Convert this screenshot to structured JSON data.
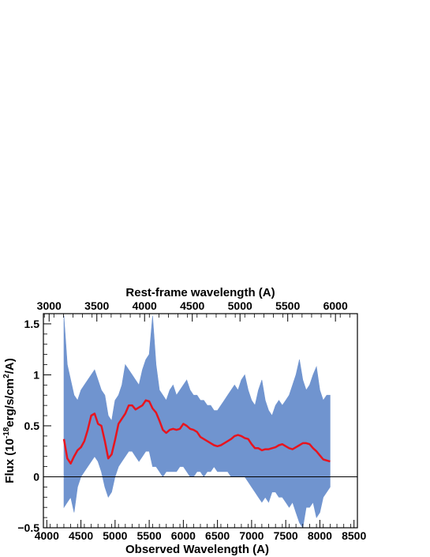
{
  "chart_data": {
    "type": "line",
    "xlabel": "Observed Wavelength (A)",
    "x2label": "Rest-frame wavelength (A)",
    "ylabel_main": "Flux (10",
    "ylabel_exp": "-18",
    "ylabel_mid": "erg/s/cm",
    "ylabel_exp2": "2",
    "ylabel_end": "/A)",
    "xlim": [
      3950,
      8550
    ],
    "ylim": [
      -0.5,
      1.6
    ],
    "x2lim": [
      2940,
      6230
    ],
    "xticks": [
      4000,
      4500,
      5000,
      5500,
      6000,
      6500,
      7000,
      7500,
      8000,
      8500
    ],
    "x2ticks": [
      3000,
      3500,
      4000,
      4500,
      5000,
      5500,
      6000
    ],
    "yticks": [
      -0.5,
      0,
      0.5,
      1,
      1.5
    ],
    "ytick_labels": [
      "−0.5",
      "0",
      "0.5",
      "1",
      "1.5"
    ],
    "colors": {
      "spectrum": "#7094cf",
      "model": "#e8141e",
      "zero_line": "#000000"
    },
    "series": [
      {
        "style": "filled-band",
        "x": [
          4250,
          4300,
          4350,
          4400,
          4450,
          4500,
          4550,
          4600,
          4650,
          4700,
          4750,
          4800,
          4850,
          4900,
          4950,
          5000,
          5050,
          5100,
          5150,
          5200,
          5250,
          5300,
          5350,
          5400,
          5450,
          5500,
          5550,
          5600,
          5650,
          5700,
          5750,
          5800,
          5850,
          5900,
          5950,
          6000,
          6050,
          6100,
          6150,
          6200,
          6250,
          6300,
          6350,
          6400,
          6450,
          6500,
          6550,
          6600,
          6650,
          6700,
          6750,
          6800,
          6850,
          6900,
          6950,
          7000,
          7050,
          7100,
          7150,
          7200,
          7250,
          7300,
          7350,
          7400,
          7450,
          7500,
          7550,
          7600,
          7650,
          7700,
          7750,
          7800,
          7850,
          7900,
          7950,
          8000,
          8050,
          8100,
          8150
        ],
        "upper": [
          1.58,
          1.1,
          0.95,
          0.8,
          0.75,
          0.85,
          0.9,
          0.95,
          1.0,
          1.05,
          0.95,
          0.85,
          0.8,
          0.6,
          0.55,
          0.75,
          0.8,
          0.9,
          1.1,
          1.05,
          1.0,
          0.95,
          0.9,
          1.05,
          1.15,
          1.2,
          1.58,
          1.1,
          0.85,
          0.8,
          0.75,
          0.85,
          0.9,
          0.8,
          0.85,
          0.9,
          0.95,
          0.85,
          0.8,
          0.8,
          0.75,
          0.75,
          0.7,
          0.7,
          0.65,
          0.65,
          0.7,
          0.75,
          0.8,
          0.85,
          0.9,
          0.85,
          0.95,
          1.0,
          0.85,
          0.75,
          0.7,
          0.85,
          0.95,
          0.75,
          0.65,
          0.6,
          0.7,
          0.75,
          0.7,
          0.75,
          0.8,
          0.9,
          1.0,
          1.15,
          0.95,
          0.85,
          0.9,
          1.0,
          1.08,
          0.85,
          0.75,
          0.8,
          0.8
        ],
        "lower": [
          -0.3,
          -0.25,
          -0.2,
          -0.35,
          -0.1,
          0.0,
          0.05,
          0.1,
          0.15,
          0.2,
          0.15,
          0.05,
          -0.1,
          -0.2,
          -0.15,
          0.0,
          0.1,
          0.15,
          0.2,
          0.25,
          0.25,
          0.2,
          0.15,
          0.2,
          0.25,
          0.25,
          0.1,
          0.1,
          0.05,
          0.0,
          0.05,
          0.05,
          0.05,
          0.05,
          0.1,
          0.1,
          0.05,
          0.0,
          0.0,
          0.05,
          0.05,
          0.0,
          0.05,
          0.05,
          0.1,
          0.05,
          0.05,
          0.05,
          0.05,
          0.0,
          0.0,
          0.0,
          0.0,
          0.0,
          -0.05,
          -0.1,
          -0.15,
          -0.2,
          -0.25,
          -0.2,
          -0.25,
          -0.15,
          -0.15,
          -0.2,
          -0.2,
          -0.25,
          -0.3,
          -0.25,
          -0.35,
          -0.45,
          -0.5,
          -0.3,
          -0.3,
          -0.25,
          -0.4,
          -0.35,
          -0.2,
          -0.15,
          -0.1
        ]
      },
      {
        "style": "line",
        "x": [
          4250,
          4300,
          4350,
          4400,
          4450,
          4500,
          4550,
          4600,
          4650,
          4700,
          4750,
          4800,
          4850,
          4900,
          4950,
          5000,
          5050,
          5100,
          5150,
          5200,
          5250,
          5300,
          5350,
          5400,
          5450,
          5500,
          5550,
          5600,
          5650,
          5700,
          5750,
          5800,
          5850,
          5900,
          5950,
          6000,
          6050,
          6100,
          6150,
          6200,
          6250,
          6300,
          6350,
          6400,
          6450,
          6500,
          6550,
          6600,
          6650,
          6700,
          6750,
          6800,
          6850,
          6900,
          6950,
          7000,
          7050,
          7100,
          7150,
          7200,
          7250,
          7300,
          7350,
          7400,
          7450,
          7500,
          7550,
          7600,
          7650,
          7700,
          7750,
          7800,
          7850,
          7900,
          7950,
          8000,
          8050,
          8100,
          8150
        ],
        "y": [
          0.37,
          0.18,
          0.13,
          0.2,
          0.26,
          0.29,
          0.35,
          0.46,
          0.6,
          0.62,
          0.52,
          0.5,
          0.35,
          0.18,
          0.22,
          0.36,
          0.52,
          0.57,
          0.62,
          0.7,
          0.7,
          0.66,
          0.68,
          0.7,
          0.75,
          0.74,
          0.67,
          0.63,
          0.55,
          0.46,
          0.43,
          0.46,
          0.47,
          0.46,
          0.47,
          0.52,
          0.5,
          0.47,
          0.46,
          0.44,
          0.39,
          0.37,
          0.35,
          0.33,
          0.31,
          0.3,
          0.31,
          0.33,
          0.35,
          0.37,
          0.4,
          0.41,
          0.4,
          0.38,
          0.37,
          0.32,
          0.28,
          0.28,
          0.26,
          0.27,
          0.27,
          0.28,
          0.29,
          0.31,
          0.32,
          0.3,
          0.28,
          0.27,
          0.29,
          0.31,
          0.33,
          0.33,
          0.32,
          0.28,
          0.25,
          0.21,
          0.17,
          0.16,
          0.15
        ]
      }
    ]
  }
}
